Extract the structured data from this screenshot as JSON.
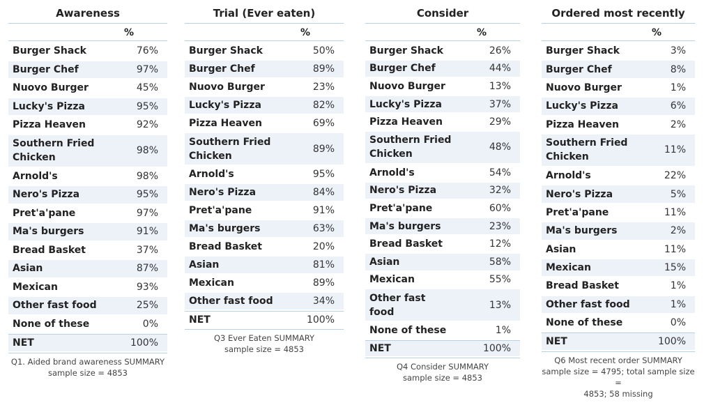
{
  "tables": [
    {
      "title": "Awareness",
      "col_header": "%",
      "rows": [
        {
          "label": "Burger Shack",
          "value": "76%"
        },
        {
          "label": "Burger Chef",
          "value": "97%"
        },
        {
          "label": "Nuovo Burger",
          "value": "45%"
        },
        {
          "label": "Lucky's Pizza",
          "value": "95%"
        },
        {
          "label": "Pizza Heaven",
          "value": "92%"
        },
        {
          "label": "Southern Fried Chicken",
          "value": "98%"
        },
        {
          "label": "Arnold's",
          "value": "98%"
        },
        {
          "label": "Nero's Pizza",
          "value": "95%"
        },
        {
          "label": "Pret'a'pane",
          "value": "97%"
        },
        {
          "label": "Ma's burgers",
          "value": "91%"
        },
        {
          "label": "Bread Basket",
          "value": "37%"
        },
        {
          "label": "Asian",
          "value": "87%"
        },
        {
          "label": "Mexican",
          "value": "93%"
        },
        {
          "label": "Other fast food",
          "value": "25%"
        },
        {
          "label": "None of these",
          "value": "0%"
        },
        {
          "label": "NET",
          "value": "100%"
        }
      ],
      "footnote": "Q1. Aided brand awareness SUMMARY\nsample size = 4853"
    },
    {
      "title": "Trial (Ever eaten)",
      "col_header": "%",
      "rows": [
        {
          "label": "Burger Shack",
          "value": "50%"
        },
        {
          "label": "Burger Chef",
          "value": "89%"
        },
        {
          "label": "Nuovo Burger",
          "value": "23%"
        },
        {
          "label": "Lucky's Pizza",
          "value": "82%"
        },
        {
          "label": "Pizza Heaven",
          "value": "69%"
        },
        {
          "label": "Southern Fried Chicken",
          "value": "89%"
        },
        {
          "label": "Arnold's",
          "value": "95%"
        },
        {
          "label": "Nero's Pizza",
          "value": "84%"
        },
        {
          "label": "Pret'a'pane",
          "value": "91%"
        },
        {
          "label": "Ma's burgers",
          "value": "63%"
        },
        {
          "label": "Bread Basket",
          "value": "20%"
        },
        {
          "label": "Asian",
          "value": "81%"
        },
        {
          "label": "Mexican",
          "value": "89%"
        },
        {
          "label": "Other fast food",
          "value": "34%"
        },
        {
          "label": "NET",
          "value": "100%"
        }
      ],
      "footnote": "Q3 Ever Eaten SUMMARY\nsample size = 4853"
    },
    {
      "title": "Consider",
      "col_header": "%",
      "rows": [
        {
          "label": "Burger Shack",
          "value": "26%"
        },
        {
          "label": "Burger Chef",
          "value": "44%"
        },
        {
          "label": "Nuovo Burger",
          "value": "13%"
        },
        {
          "label": "Lucky's Pizza",
          "value": "37%"
        },
        {
          "label": "Pizza Heaven",
          "value": "29%"
        },
        {
          "label": "Southern Fried Chicken",
          "value": "48%"
        },
        {
          "label": "Arnold's",
          "value": "54%"
        },
        {
          "label": "Nero's Pizza",
          "value": "32%"
        },
        {
          "label": "Pret'a'pane",
          "value": "60%"
        },
        {
          "label": "Ma's burgers",
          "value": "23%"
        },
        {
          "label": "Bread Basket",
          "value": "12%"
        },
        {
          "label": "Asian",
          "value": "58%"
        },
        {
          "label": "Mexican",
          "value": "55%"
        },
        {
          "label": "Other fast food",
          "value": "13%"
        },
        {
          "label": "None of these",
          "value": "1%"
        },
        {
          "label": "NET",
          "value": "100%"
        }
      ],
      "footnote": "Q4 Consider SUMMARY\nsample size = 4853"
    },
    {
      "title": "Ordered most recently",
      "col_header": "%",
      "rows": [
        {
          "label": "Burger Shack",
          "value": "3%"
        },
        {
          "label": "Burger Chef",
          "value": "8%"
        },
        {
          "label": "Nuovo Burger",
          "value": "1%"
        },
        {
          "label": "Lucky's Pizza",
          "value": "6%"
        },
        {
          "label": "Pizza Heaven",
          "value": "2%"
        },
        {
          "label": "Southern Fried Chicken",
          "value": "11%"
        },
        {
          "label": "Arnold's",
          "value": "22%"
        },
        {
          "label": "Nero's Pizza",
          "value": "5%"
        },
        {
          "label": "Pret'a'pane",
          "value": "11%"
        },
        {
          "label": "Ma's burgers",
          "value": "2%"
        },
        {
          "label": "Asian",
          "value": "11%"
        },
        {
          "label": "Mexican",
          "value": "15%"
        },
        {
          "label": "Bread Basket",
          "value": "1%"
        },
        {
          "label": "Other fast food",
          "value": "1%"
        },
        {
          "label": "None of these",
          "value": "0%"
        },
        {
          "label": "NET",
          "value": "100%"
        }
      ],
      "footnote": "Q6 Most recent order SUMMARY\nsample size = 4795; total sample size =\n4853; 58 missing"
    }
  ]
}
